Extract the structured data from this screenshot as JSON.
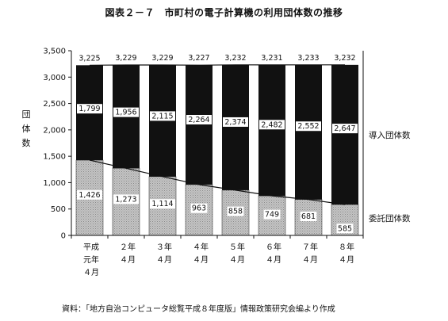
{
  "title": "図表２－７　市町村の電子計算機の利用団体数の推移",
  "source": "資料：「地方自治コンピュータ総覧平成８年度版」情報政策研究会編より作成",
  "chart_data": {
    "type": "bar",
    "stacked": true,
    "ylabel": "団体数",
    "ylim": [
      0,
      3500
    ],
    "yticks": [
      0,
      500,
      "1,000",
      "1,500",
      "2,000",
      "2,500",
      "3,000",
      "3,500"
    ],
    "ytick_values": [
      0,
      500,
      1000,
      1500,
      2000,
      2500,
      3000,
      3500
    ],
    "categories": [
      [
        "平成",
        "元年",
        "４月"
      ],
      [
        "２年",
        "４月"
      ],
      [
        "３年",
        "４月"
      ],
      [
        "４年",
        "４月"
      ],
      [
        "５年",
        "４月"
      ],
      [
        "６年",
        "４月"
      ],
      [
        "７年",
        "４月"
      ],
      [
        "８年",
        "４月"
      ]
    ],
    "series": [
      {
        "name": "委託団体数",
        "values": [
          1426,
          1273,
          1114,
          963,
          858,
          749,
          681,
          585
        ],
        "labels": [
          "1,426",
          "1,273",
          "1,114",
          "963",
          "858",
          "749",
          "681",
          "585"
        ],
        "color": "#b0b0b0"
      },
      {
        "name": "導入団体数",
        "values": [
          1799,
          1956,
          2115,
          2264,
          2374,
          2482,
          2552,
          2647
        ],
        "labels": [
          "1,799",
          "1,956",
          "2,115",
          "2,264",
          "2,374",
          "2,482",
          "2,552",
          "2,647"
        ],
        "color": "#111111"
      }
    ],
    "totals": [
      3225,
      3229,
      3229,
      3227,
      3232,
      3231,
      3233,
      3232
    ],
    "total_labels": [
      "3,225",
      "3,229",
      "3,229",
      "3,227",
      "3,232",
      "3,231",
      "3,233",
      "3,232"
    ],
    "trend_lines": [
      "委託団体数",
      "合計"
    ],
    "grid": false
  }
}
